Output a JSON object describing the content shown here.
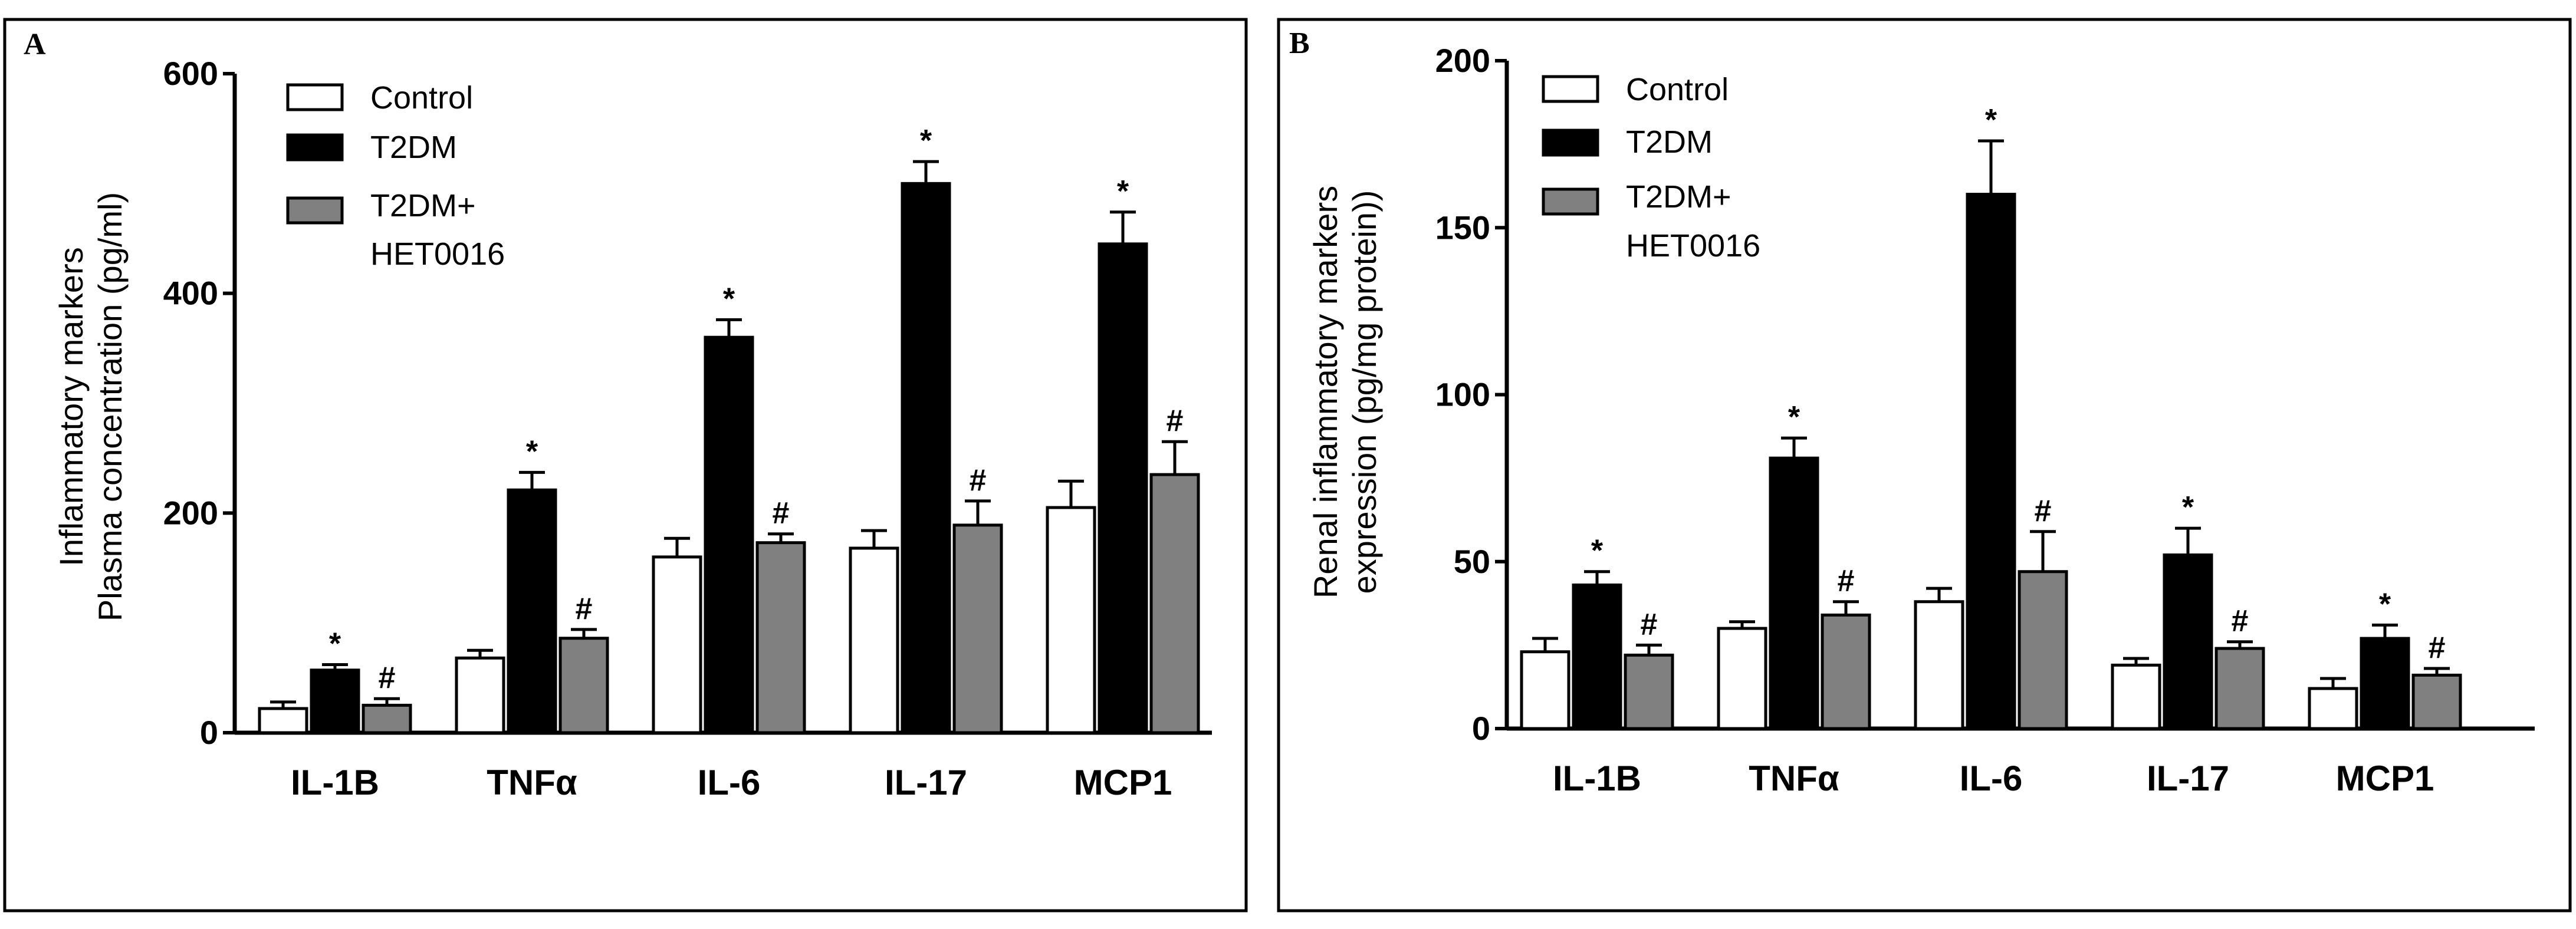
{
  "colors": {
    "Control": "#ffffff",
    "T2DM": "#000000",
    "T2DM+HET0016": "#808080"
  },
  "chart_data": [
    {
      "panel": "A",
      "type": "bar",
      "ylabel_lines": [
        "Inflammatory markers",
        "Plasma concentration (pg/ml)"
      ],
      "ylim": [
        0,
        600
      ],
      "yticks": [
        "0",
        "200",
        "400",
        "600"
      ],
      "categories": [
        "IL-1B",
        "TNFα",
        "IL-6",
        "IL-17",
        "MCP1"
      ],
      "legend": [
        "Control",
        "T2DM",
        "T2DM+",
        "HET0016"
      ],
      "series": [
        {
          "name": "Control",
          "values": [
            22,
            68,
            160,
            168,
            205
          ],
          "errors": [
            6,
            7,
            17,
            16,
            24
          ]
        },
        {
          "name": "T2DM",
          "values": [
            57,
            221,
            360,
            500,
            445
          ],
          "errors": [
            5,
            16,
            16,
            20,
            29
          ]
        },
        {
          "name": "T2DM+HET0016",
          "values": [
            25,
            86,
            173,
            189,
            235
          ],
          "errors": [
            6,
            8,
            8,
            22,
            30
          ]
        }
      ],
      "annotations": {
        "T2DM": [
          "*",
          "*",
          "*",
          "*",
          "*"
        ],
        "T2DM+HET0016": [
          "#",
          "#",
          "#",
          "#",
          "#"
        ]
      }
    },
    {
      "panel": "B",
      "type": "bar",
      "ylabel_lines": [
        "Renal inflammatory markers",
        "expression (pg/mg protein))"
      ],
      "ylim": [
        0,
        200
      ],
      "yticks": [
        "0",
        "50",
        "100",
        "150",
        "200"
      ],
      "categories": [
        "IL-1B",
        "TNFα",
        "IL-6",
        "IL-17",
        "MCP1"
      ],
      "legend": [
        "Control",
        "T2DM",
        "T2DM+",
        "HET0016"
      ],
      "series": [
        {
          "name": "Control",
          "values": [
            23,
            30,
            38,
            19,
            12
          ],
          "errors": [
            4,
            2,
            4,
            2,
            3
          ]
        },
        {
          "name": "T2DM",
          "values": [
            43,
            81,
            160,
            52,
            27
          ],
          "errors": [
            4,
            6,
            16,
            8,
            4
          ]
        },
        {
          "name": "T2DM+HET0016",
          "values": [
            22,
            34,
            47,
            24,
            16
          ],
          "errors": [
            3,
            4,
            12,
            2,
            2
          ]
        }
      ],
      "annotations": {
        "T2DM": [
          "*",
          "*",
          "*",
          "*",
          "*"
        ],
        "T2DM+HET0016": [
          "#",
          "#",
          "#",
          "#",
          "#"
        ]
      }
    }
  ]
}
